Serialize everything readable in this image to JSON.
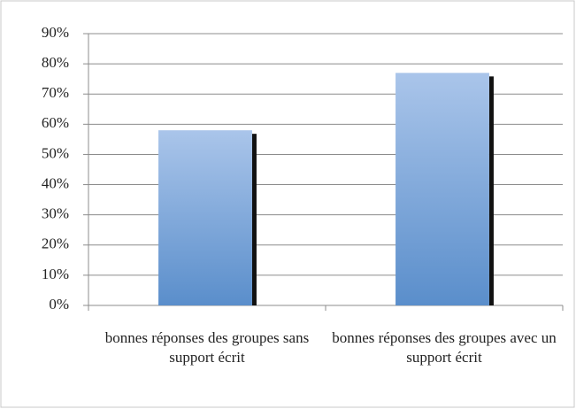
{
  "chart_data": {
    "type": "bar",
    "categories": [
      "bonnes réponses des groupes sans support écrit",
      "bonnes réponses des groupes avec un support écrit"
    ],
    "values": [
      58,
      77
    ],
    "color": "#6f9bd4",
    "ylim": [
      0,
      90
    ],
    "yticks": [
      {
        "value": 0,
        "label": "0%"
      },
      {
        "value": 10,
        "label": "10%"
      },
      {
        "value": 20,
        "label": "20%"
      },
      {
        "value": 30,
        "label": "30%"
      },
      {
        "value": 40,
        "label": "40%"
      },
      {
        "value": 50,
        "label": "50%"
      },
      {
        "value": 60,
        "label": "60%"
      },
      {
        "value": 70,
        "label": "70%"
      },
      {
        "value": 80,
        "label": "80%"
      },
      {
        "value": 90,
        "label": "90%"
      }
    ],
    "grid": true
  }
}
